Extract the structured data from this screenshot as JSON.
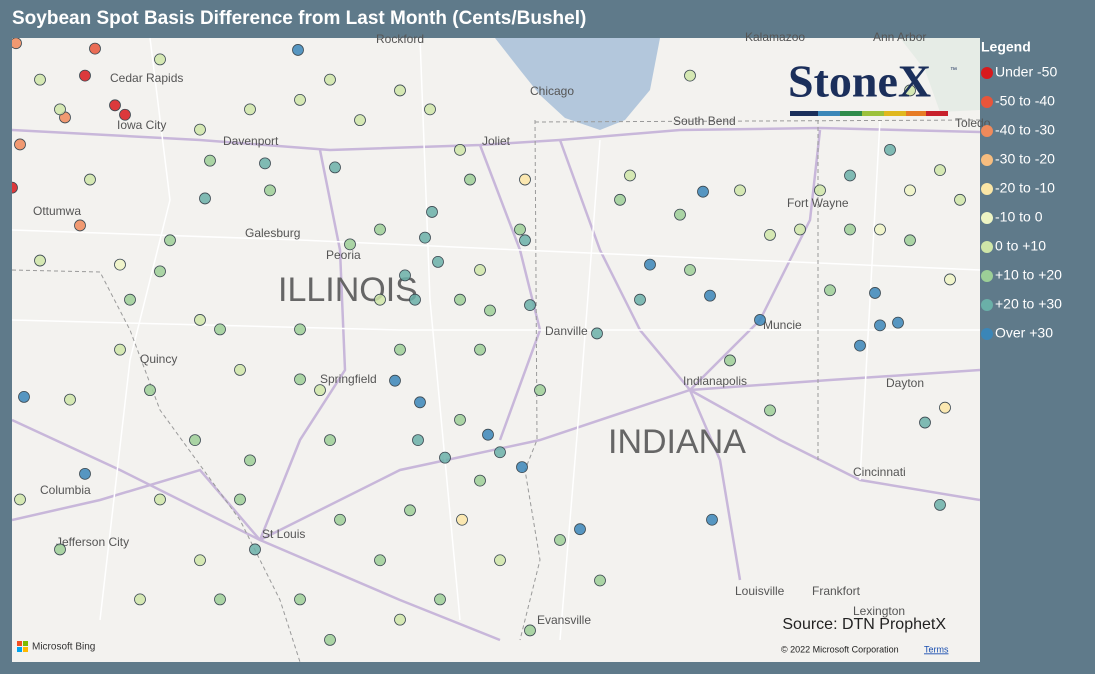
{
  "map": {
    "title": "Soybean Spot Basis Difference from Last Month (Cents/Bushel)",
    "legend_title": "Legend",
    "legend": [
      {
        "label": "Under -50",
        "color": "#d7191c"
      },
      {
        "label": "-50 to -40",
        "color": "#e8553a"
      },
      {
        "label": "-40 to -30",
        "color": "#f08a5b"
      },
      {
        "label": "-30 to -20",
        "color": "#f7bd7f"
      },
      {
        "label": "-20 to -10",
        "color": "#fbe6a6"
      },
      {
        "label": "-10 to 0",
        "color": "#eef5c4"
      },
      {
        "label": "0 to +10",
        "color": "#cfe6a8"
      },
      {
        "label": "+10 to +20",
        "color": "#9ccf97"
      },
      {
        "label": "+20 to +30",
        "color": "#6ab0a8"
      },
      {
        "label": "Over +30",
        "color": "#3a86b8"
      }
    ],
    "lonlim": [
      -93.15,
      -83.35
    ],
    "latlim": [
      42.55,
      37.65
    ],
    "states": [
      "ILLINOIS",
      "INDIANA"
    ],
    "cities": [
      "Rockford",
      "Cedar Rapids",
      "Iowa City",
      "Davenport",
      "Ottumwa",
      "Galesburg",
      "Peoria",
      "Joliet",
      "Chicago",
      "South Bend",
      "Fort Wayne",
      "Toledo",
      "Muncie",
      "Indianapolis",
      "Dayton",
      "Springfield",
      "Danville",
      "Quincy",
      "Columbia",
      "Jefferson City",
      "St Louis",
      "Cincinnati",
      "Louisville",
      "Frankfort",
      "Lexington",
      "Evansville",
      "Kalamazoo",
      "Ann Arbor"
    ],
    "logo": "StoneX",
    "logo_mark": "™",
    "source": "Source: DTN ProphetX",
    "bing": "Microsoft Bing",
    "copyright": "© 2022 Microsoft Corporation",
    "terms": "Terms",
    "points": [
      [
        -92.3,
        41.99,
        0
      ],
      [
        -92.0,
        41.77,
        0
      ],
      [
        -91.9,
        41.7,
        0
      ],
      [
        -93.03,
        41.16,
        0
      ],
      [
        -92.2,
        42.19,
        1
      ],
      [
        -92.95,
        41.48,
        2
      ],
      [
        -92.5,
        41.68,
        2
      ],
      [
        -92.35,
        40.88,
        2
      ],
      [
        -92.99,
        42.23,
        2
      ],
      [
        -90.17,
        42.18,
        9
      ],
      [
        -92.91,
        39.61,
        9
      ],
      [
        -92.3,
        39.04,
        9
      ],
      [
        -89.2,
        39.73,
        9
      ],
      [
        -87.93,
        39.09,
        9
      ],
      [
        -87.35,
        38.63,
        9
      ],
      [
        -86.03,
        38.7,
        9
      ],
      [
        -86.65,
        40.59,
        9
      ],
      [
        -86.12,
        41.13,
        9
      ],
      [
        -86.05,
        40.36,
        9
      ],
      [
        -84.55,
        39.99,
        9
      ],
      [
        -84.4,
        40.38,
        9
      ],
      [
        -84.35,
        40.14,
        9
      ],
      [
        -84.17,
        40.16,
        9
      ],
      [
        -85.55,
        40.18,
        9
      ],
      [
        -88.27,
        39.33,
        9
      ],
      [
        -88.95,
        39.57,
        9
      ],
      [
        -90.5,
        41.34,
        8
      ],
      [
        -89.8,
        41.31,
        8
      ],
      [
        -91.1,
        41.08,
        8
      ],
      [
        -89.1,
        40.51,
        8
      ],
      [
        -88.83,
        40.98,
        8
      ],
      [
        -88.9,
        40.79,
        8
      ],
      [
        -88.77,
        40.61,
        8
      ],
      [
        -87.9,
        40.77,
        8
      ],
      [
        -88.7,
        39.16,
        8
      ],
      [
        -88.97,
        39.29,
        8
      ],
      [
        -88.15,
        39.2,
        8
      ],
      [
        -90.6,
        38.48,
        8
      ],
      [
        -86.75,
        40.33,
        8
      ],
      [
        -83.75,
        38.81,
        8
      ],
      [
        -83.9,
        39.42,
        8
      ],
      [
        -84.25,
        41.44,
        8
      ],
      [
        -84.65,
        41.25,
        8
      ],
      [
        -87.18,
        40.08,
        8
      ],
      [
        -89.0,
        40.33,
        8
      ],
      [
        -87.85,
        40.29,
        8
      ],
      [
        -91.45,
        40.77,
        7
      ],
      [
        -91.85,
        40.33,
        7
      ],
      [
        -91.55,
        40.54,
        7
      ],
      [
        -90.15,
        40.11,
        7
      ],
      [
        -89.65,
        40.74,
        7
      ],
      [
        -89.35,
        40.85,
        7
      ],
      [
        -88.55,
        40.33,
        7
      ],
      [
        -88.25,
        40.25,
        7
      ],
      [
        -87.95,
        40.85,
        7
      ],
      [
        -88.35,
        39.96,
        7
      ],
      [
        -90.15,
        39.74,
        7
      ],
      [
        -89.85,
        39.29,
        7
      ],
      [
        -90.65,
        39.14,
        7
      ],
      [
        -89.75,
        38.7,
        7
      ],
      [
        -90.15,
        38.11,
        7
      ],
      [
        -89.05,
        38.77,
        7
      ],
      [
        -89.35,
        38.4,
        7
      ],
      [
        -88.75,
        38.11,
        7
      ],
      [
        -87.55,
        38.55,
        7
      ],
      [
        -87.15,
        38.25,
        7
      ],
      [
        -84.85,
        40.4,
        7
      ],
      [
        -84.65,
        40.85,
        7
      ],
      [
        -84.05,
        40.77,
        7
      ],
      [
        -86.35,
        40.96,
        7
      ],
      [
        -85.85,
        39.88,
        7
      ],
      [
        -85.45,
        39.51,
        7
      ],
      [
        -86.25,
        40.55,
        7
      ],
      [
        -86.95,
        41.07,
        7
      ],
      [
        -88.45,
        41.22,
        7
      ],
      [
        -91.05,
        41.36,
        7
      ],
      [
        -90.45,
        41.14,
        7
      ],
      [
        -90.95,
        40.11,
        7
      ],
      [
        -91.65,
        39.66,
        7
      ],
      [
        -92.55,
        38.48,
        7
      ],
      [
        -91.2,
        39.29,
        7
      ],
      [
        -90.75,
        38.85,
        7
      ],
      [
        -89.15,
        39.96,
        7
      ],
      [
        -87.75,
        39.66,
        7
      ],
      [
        -88.55,
        39.44,
        7
      ],
      [
        -88.35,
        38.99,
        7
      ],
      [
        -90.95,
        38.11,
        7
      ],
      [
        -89.85,
        37.81,
        7
      ],
      [
        -87.85,
        37.88,
        7
      ],
      [
        -92.75,
        41.96,
        6
      ],
      [
        -92.55,
        41.74,
        6
      ],
      [
        -92.25,
        41.22,
        6
      ],
      [
        -91.95,
        39.96,
        6
      ],
      [
        -92.45,
        39.59,
        6
      ],
      [
        -91.15,
        40.18,
        6
      ],
      [
        -90.75,
        39.81,
        6
      ],
      [
        -89.95,
        39.66,
        6
      ],
      [
        -89.35,
        40.33,
        6
      ],
      [
        -88.35,
        40.55,
        6
      ],
      [
        -90.15,
        41.81,
        6
      ],
      [
        -89.55,
        41.66,
        6
      ],
      [
        -89.15,
        41.88,
        6
      ],
      [
        -88.85,
        41.74,
        6
      ],
      [
        -88.55,
        41.44,
        6
      ],
      [
        -89.85,
        41.96,
        6
      ],
      [
        -91.55,
        42.11,
        6
      ],
      [
        -91.15,
        41.59,
        6
      ],
      [
        -90.65,
        41.74,
        6
      ],
      [
        -92.75,
        40.62,
        6
      ],
      [
        -92.95,
        38.85,
        6
      ],
      [
        -91.55,
        38.85,
        6
      ],
      [
        -91.15,
        38.4,
        6
      ],
      [
        -91.75,
        38.11,
        6
      ],
      [
        -89.15,
        37.96,
        6
      ],
      [
        -88.15,
        38.4,
        6
      ],
      [
        -85.45,
        40.81,
        6
      ],
      [
        -84.95,
        41.14,
        6
      ],
      [
        -83.75,
        41.29,
        6
      ],
      [
        -83.55,
        41.07,
        6
      ],
      [
        -85.15,
        40.85,
        6
      ],
      [
        -85.75,
        41.14,
        6
      ],
      [
        -86.85,
        41.25,
        6
      ],
      [
        -86.25,
        41.99,
        6
      ],
      [
        -84.05,
        41.88,
        6
      ],
      [
        -84.05,
        41.14,
        5
      ],
      [
        -84.35,
        40.85,
        5
      ],
      [
        -83.65,
        40.48,
        5
      ],
      [
        -91.95,
        40.59,
        5
      ],
      [
        -87.9,
        41.22,
        4
      ],
      [
        -83.7,
        39.53,
        4
      ],
      [
        -88.53,
        38.7,
        4
      ]
    ]
  }
}
